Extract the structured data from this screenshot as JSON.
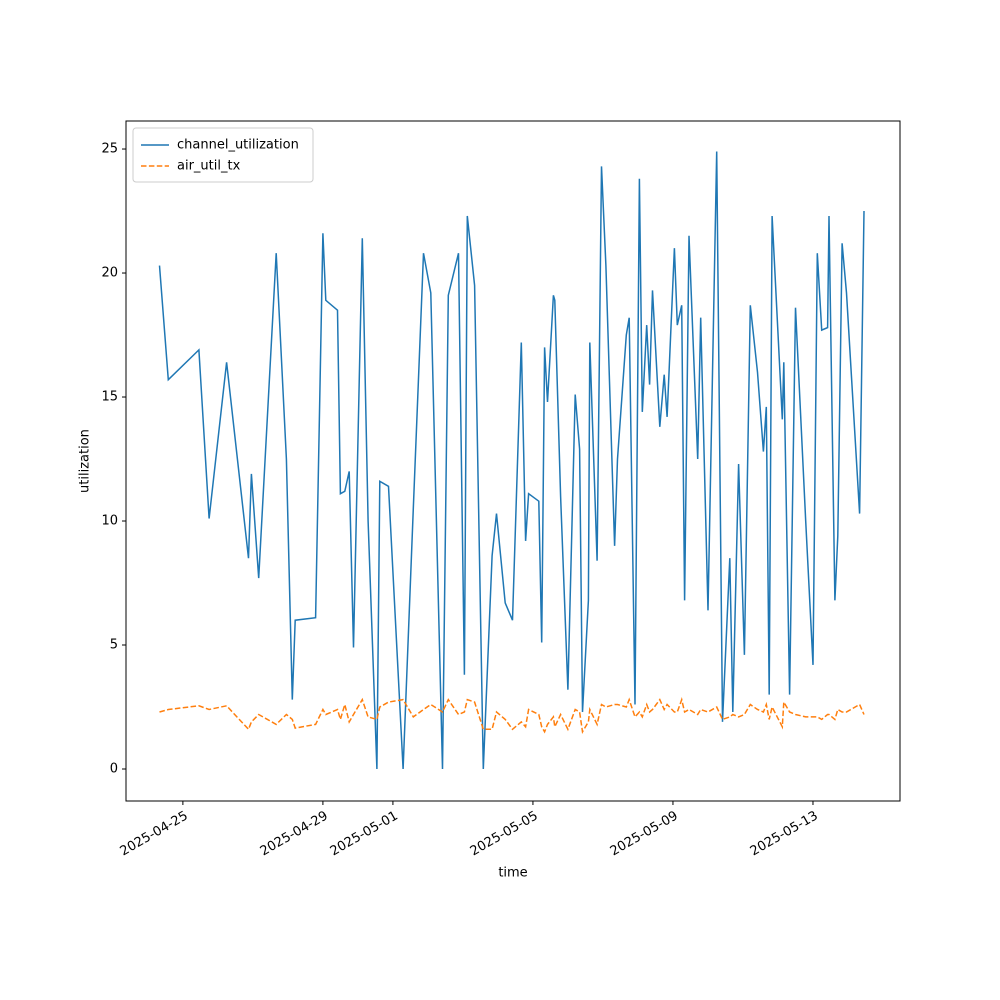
{
  "chart_data": {
    "type": "line",
    "x_label": "time",
    "y_label": "utilization",
    "x": [
      "2025-04-24 08:00",
      "2025-04-24 14:00",
      "2025-04-25 11:00",
      "2025-04-25 18:00",
      "2025-04-26 06:00",
      "2025-04-26 21:00",
      "2025-04-26 23:00",
      "2025-04-27 04:00",
      "2025-04-27 16:00",
      "2025-04-27 23:00",
      "2025-04-28 03:00",
      "2025-04-28 05:00",
      "2025-04-28 19:00",
      "2025-04-29 00:00",
      "2025-04-29 02:00",
      "2025-04-29 10:00",
      "2025-04-29 12:00",
      "2025-04-29 15:00",
      "2025-04-29 18:00",
      "2025-04-29 21:00",
      "2025-04-30 03:00",
      "2025-04-30 07:00",
      "2025-04-30 13:00",
      "2025-04-30 15:00",
      "2025-04-30 21:00",
      "2025-05-01 07:00",
      "2025-05-01 14:00",
      "2025-05-01 21:00",
      "2025-05-02 02:00",
      "2025-05-02 10:00",
      "2025-05-02 14:00",
      "2025-05-02 21:00",
      "2025-05-03 01:00",
      "2025-05-03 03:00",
      "2025-05-03 08:00",
      "2025-05-03 14:00",
      "2025-05-03 20:00",
      "2025-05-03 23:00",
      "2025-05-04 05:00",
      "2025-05-04 10:00",
      "2025-05-04 16:00",
      "2025-05-04 19:00",
      "2025-05-04 21:00",
      "2025-05-05 04:00",
      "2025-05-05 06:00",
      "2025-05-05 08:00",
      "2025-05-05 10:00",
      "2025-05-05 14:00",
      "2025-05-05 15:00",
      "2025-05-05 19:00",
      "2025-05-06 00:00",
      "2025-05-06 05:00",
      "2025-05-06 08:00",
      "2025-05-06 10:00",
      "2025-05-06 14:00",
      "2025-05-06 15:00",
      "2025-05-06 20:00",
      "2025-05-06 23:00",
      "2025-05-07 02:00",
      "2025-05-07 08:00",
      "2025-05-07 10:00",
      "2025-05-07 16:00",
      "2025-05-07 18:00",
      "2025-05-07 22:00",
      "2025-05-08 01:00",
      "2025-05-08 03:00",
      "2025-05-08 06:00",
      "2025-05-08 08:00",
      "2025-05-08 10:00",
      "2025-05-08 15:00",
      "2025-05-08 18:00",
      "2025-05-08 20:00",
      "2025-05-09 01:00",
      "2025-05-09 03:00",
      "2025-05-09 06:00",
      "2025-05-09 08:00",
      "2025-05-09 11:00",
      "2025-05-09 17:00",
      "2025-05-09 19:00",
      "2025-05-10 00:00",
      "2025-05-10 06:00",
      "2025-05-10 10:00",
      "2025-05-10 15:00",
      "2025-05-10 17:00",
      "2025-05-10 21:00",
      "2025-05-11 01:00",
      "2025-05-11 05:00",
      "2025-05-11 10:00",
      "2025-05-11 14:00",
      "2025-05-11 16:00",
      "2025-05-11 18:00",
      "2025-05-11 20:00",
      "2025-05-12 03:00",
      "2025-05-12 04:00",
      "2025-05-12 08:00",
      "2025-05-12 12:00",
      "2025-05-12 19:00",
      "2025-05-13 00:00",
      "2025-05-13 03:00",
      "2025-05-13 06:00",
      "2025-05-13 10:00",
      "2025-05-13 11:00",
      "2025-05-13 15:00",
      "2025-05-13 17:00",
      "2025-05-13 20:00",
      "2025-05-13 23:00",
      "2025-05-14 08:00",
      "2025-05-14 11:00"
    ],
    "series": [
      {
        "name": "channel_utilization",
        "color": "#1f77b4",
        "dash": false,
        "values": [
          20.3,
          15.7,
          16.9,
          10.1,
          16.4,
          8.5,
          11.9,
          7.7,
          20.8,
          12.5,
          2.8,
          6.0,
          6.1,
          21.6,
          18.9,
          18.5,
          11.1,
          11.2,
          12.0,
          4.9,
          21.4,
          10.0,
          0.0,
          11.6,
          11.4,
          0.0,
          10.5,
          20.8,
          19.2,
          0.0,
          19.1,
          20.8,
          3.8,
          22.3,
          19.5,
          0.0,
          8.6,
          10.3,
          6.7,
          6.0,
          17.2,
          9.2,
          11.1,
          10.8,
          5.1,
          17.0,
          14.8,
          19.1,
          18.9,
          11.0,
          3.2,
          15.1,
          12.9,
          2.3,
          6.8,
          17.2,
          8.4,
          24.3,
          20.3,
          9.0,
          12.5,
          17.5,
          18.2,
          2.6,
          23.8,
          14.4,
          17.9,
          15.5,
          19.3,
          13.8,
          15.9,
          14.2,
          21.0,
          17.9,
          18.7,
          6.8,
          21.5,
          12.5,
          18.2,
          6.4,
          24.9,
          1.9,
          8.5,
          2.3,
          12.3,
          4.6,
          18.7,
          16.0,
          12.8,
          14.6,
          3.0,
          22.3,
          14.1,
          16.4,
          3.0,
          18.6,
          10.0,
          4.2,
          20.8,
          17.7,
          17.8,
          22.3,
          6.8,
          9.4,
          21.2,
          19.2,
          10.3,
          22.5
        ]
      },
      {
        "name": "air_util_tx",
        "color": "#ff7f0e",
        "dash": true,
        "values": [
          2.3,
          2.4,
          2.55,
          2.4,
          2.55,
          1.6,
          1.9,
          2.2,
          1.8,
          2.2,
          2.0,
          1.65,
          1.8,
          2.4,
          2.2,
          2.4,
          2.0,
          2.6,
          1.9,
          2.2,
          2.8,
          2.1,
          2.0,
          2.5,
          2.7,
          2.8,
          2.1,
          2.4,
          2.6,
          2.3,
          2.8,
          2.2,
          2.3,
          2.8,
          2.7,
          1.6,
          1.6,
          2.3,
          2.0,
          1.6,
          1.9,
          1.7,
          2.4,
          2.2,
          1.7,
          1.5,
          1.8,
          2.1,
          1.7,
          2.2,
          1.6,
          2.4,
          2.3,
          1.5,
          1.9,
          2.4,
          1.8,
          2.6,
          2.5,
          2.6,
          2.6,
          2.5,
          2.8,
          2.1,
          2.3,
          2.1,
          2.6,
          2.3,
          2.4,
          2.8,
          2.4,
          2.6,
          2.3,
          2.3,
          2.8,
          2.3,
          2.4,
          2.2,
          2.4,
          2.3,
          2.5,
          2.0,
          2.1,
          2.2,
          2.1,
          2.2,
          2.6,
          2.4,
          2.3,
          2.6,
          2.0,
          2.5,
          1.7,
          2.7,
          2.3,
          2.2,
          2.1,
          2.1,
          2.1,
          2.0,
          2.2,
          2.2,
          2.0,
          2.4,
          2.3,
          2.3,
          2.6,
          2.2
        ]
      }
    ],
    "xlim": [
      "2025-04-23 09:00",
      "2025-05-15 11:40"
    ],
    "xticks": [
      "2025-04-25",
      "2025-04-29",
      "2025-05-01",
      "2025-05-05",
      "2025-05-09",
      "2025-05-13"
    ],
    "ylim": [
      -1.29,
      26.13
    ],
    "yticks": [
      0,
      5,
      10,
      15,
      20,
      25
    ],
    "legend": "upper left"
  }
}
